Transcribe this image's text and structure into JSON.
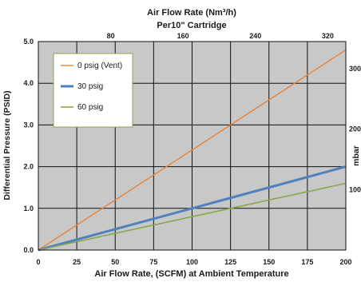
{
  "chart_data": {
    "type": "line",
    "title": "Air Flow Rate (Nm³/h)",
    "subtitle": "Per10\" Cartridge",
    "xlabel": "Air Flow Rate, (SCFM) at Ambient Temperature",
    "ylabel": "Differential Pressure (PSID)",
    "y2label": "mbar",
    "xlim": [
      0,
      200
    ],
    "ylim": [
      0,
      5.0
    ],
    "x_ticks": [
      "0",
      "25",
      "50",
      "75",
      "100",
      "125",
      "150",
      "175",
      "200"
    ],
    "y_ticks": [
      "0.0",
      "1.0",
      "2.0",
      "3.0",
      "4.0",
      "5.0"
    ],
    "top_axis": {
      "ticks": [
        "80",
        "160",
        "240",
        "320"
      ],
      "values": [
        80,
        160,
        240,
        320
      ],
      "range": [
        0,
        340
      ]
    },
    "right_axis": {
      "ticks": [
        "100",
        "200",
        "300"
      ],
      "values": [
        100,
        200,
        300
      ],
      "range": [
        0,
        345
      ]
    },
    "grid": true,
    "legend_position": "top-left",
    "series": [
      {
        "name": "0 psig (Vent)",
        "color": "#e8823a",
        "width": 1.4,
        "x": [
          0,
          200
        ],
        "y": [
          0,
          4.8
        ]
      },
      {
        "name": "30 psig",
        "color": "#4f81bd",
        "width": 3,
        "x": [
          0,
          200
        ],
        "y": [
          0,
          2.0
        ]
      },
      {
        "name": "60 psig",
        "color": "#8aa64a",
        "width": 1.6,
        "x": [
          0,
          200
        ],
        "y": [
          0,
          1.6
        ]
      }
    ],
    "colors": {
      "plot_bg": "#c8c8c8",
      "grid": "#111111",
      "legend_bg": "#ffffff",
      "legend_border": "#8aa64a"
    }
  }
}
